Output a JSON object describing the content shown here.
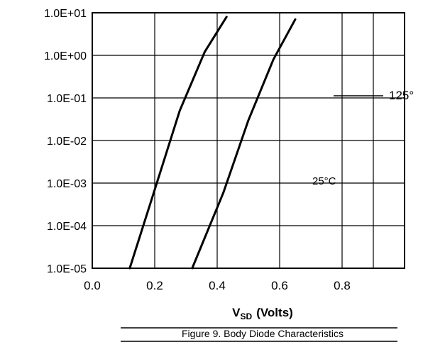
{
  "chart_data": {
    "type": "line",
    "title": "",
    "xlabel": "V",
    "xlabel_subscript": "SD",
    "xlabel_unit": "(Volts)",
    "ylabel": "",
    "xlim": [
      0.0,
      1.0
    ],
    "x_ticks": [
      "0.0",
      "0.2",
      "0.4",
      "0.6",
      "0.8"
    ],
    "y_scale": "log",
    "ylim": [
      1e-05,
      10
    ],
    "y_ticks": [
      "1.0E-05",
      "1.0E-04",
      "1.0E-03",
      "1.0E-02",
      "1.0E-01",
      "1.0E+00",
      "1.0E+01"
    ],
    "grid": true,
    "annotations": [
      "125°",
      "25°C"
    ],
    "series": [
      {
        "label": "125°",
        "points": [
          [
            0.12,
            1e-05
          ],
          [
            0.2,
            0.0007
          ],
          [
            0.28,
            0.05
          ],
          [
            0.36,
            1.2
          ],
          [
            0.43,
            8.0
          ]
        ]
      },
      {
        "label": "25°C",
        "points": [
          [
            0.32,
            1e-05
          ],
          [
            0.42,
            0.0006
          ],
          [
            0.5,
            0.03
          ],
          [
            0.58,
            0.8
          ],
          [
            0.65,
            7.0
          ]
        ]
      }
    ],
    "caption": "Figure 9. Body Diode Characteristics"
  }
}
